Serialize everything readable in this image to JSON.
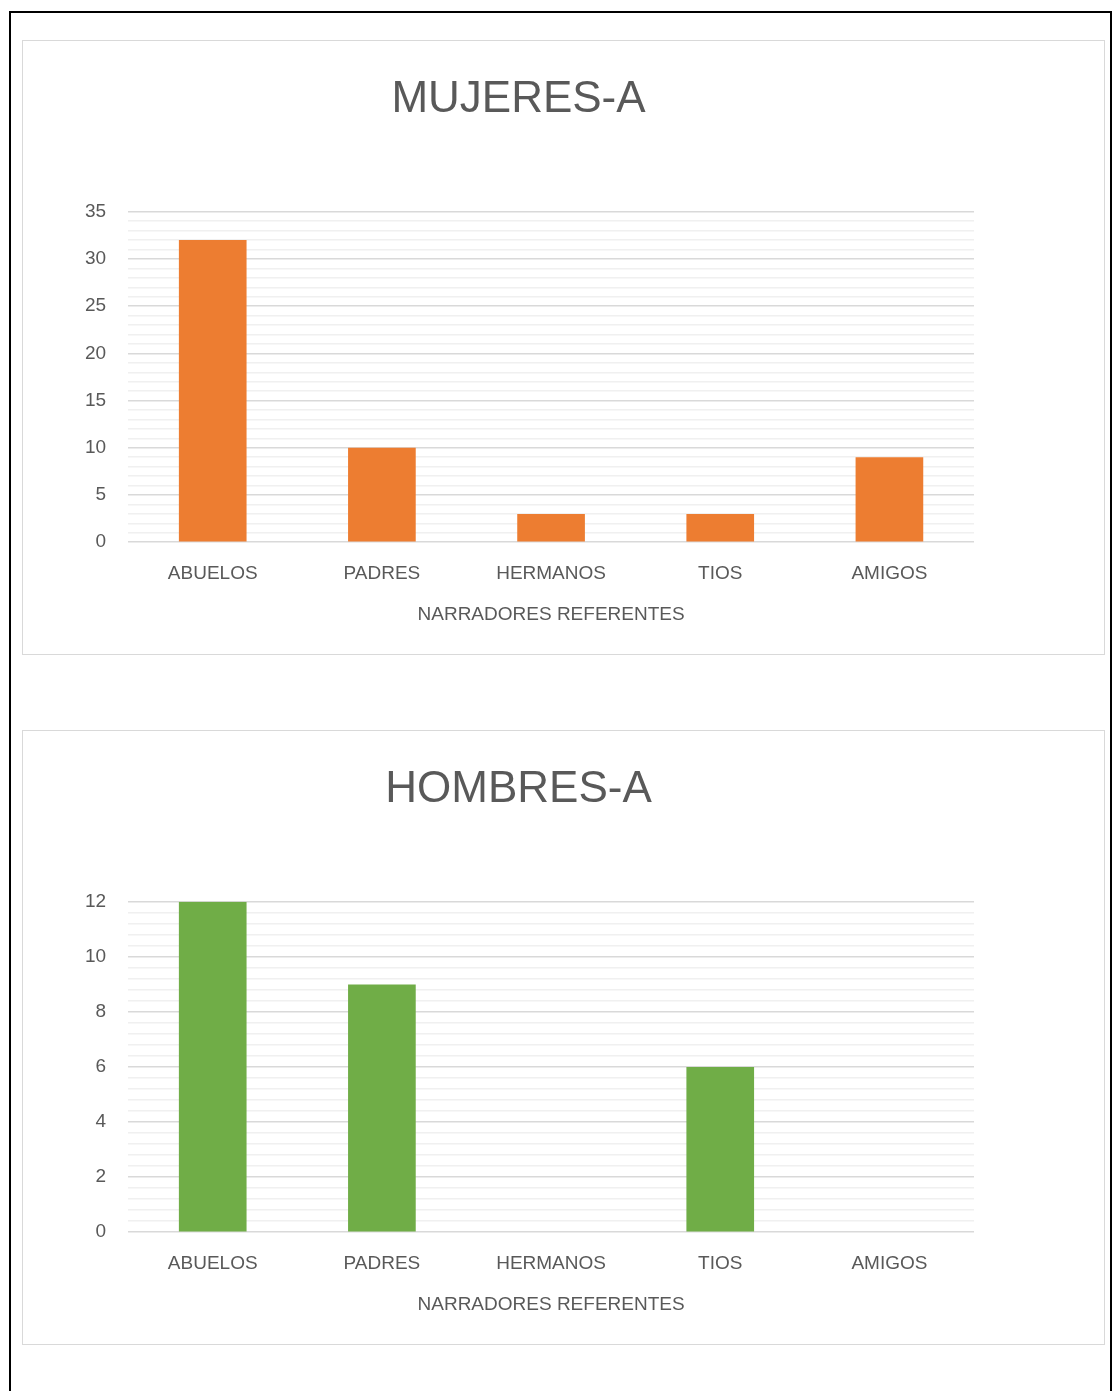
{
  "chart_data": [
    {
      "type": "bar",
      "title": "MUJERES-A",
      "xlabel": "NARRADORES REFERENTES",
      "categories": [
        "ABUELOS",
        "PADRES",
        "HERMANOS",
        "TIOS",
        "AMIGOS"
      ],
      "values": [
        32,
        10,
        3,
        3,
        9
      ],
      "color": "#ed7d31",
      "ylim": [
        0,
        35
      ],
      "yticks": [
        0,
        {
          "value": 1,
          "label": null
        },
        {
          "value": 2,
          "label": null
        },
        {
          "value": 3,
          "label": null
        },
        {
          "value": 4,
          "label": null
        },
        5,
        {
          "value": 6,
          "label": null
        },
        {
          "value": 7,
          "label": null
        },
        {
          "value": 8,
          "label": null
        },
        {
          "value": 9,
          "label": null
        },
        10,
        {
          "value": 11,
          "label": null
        },
        {
          "value": 12,
          "label": null
        },
        {
          "value": 13,
          "label": null
        },
        {
          "value": 14,
          "label": null
        },
        15,
        {
          "value": 16,
          "label": null
        },
        {
          "value": 17,
          "label": null
        },
        {
          "value": 18,
          "label": null
        },
        {
          "value": 19,
          "label": null
        },
        20,
        {
          "value": 21,
          "label": null
        },
        {
          "value": 22,
          "label": null
        },
        {
          "value": 23,
          "label": null
        },
        {
          "value": 24,
          "label": null
        },
        25,
        {
          "value": 26,
          "label": null
        },
        {
          "value": 27,
          "label": null
        },
        {
          "value": 28,
          "label": null
        },
        {
          "value": 29,
          "label": null
        },
        30,
        {
          "value": 31,
          "label": null
        },
        {
          "value": 32,
          "label": null
        },
        {
          "value": 33,
          "label": null
        },
        {
          "value": 34,
          "label": null
        },
        35
      ],
      "grid": "y"
    },
    {
      "type": "bar",
      "title": "HOMBRES-A",
      "xlabel": "NARRADORES REFERENTES",
      "categories": [
        "ABUELOS",
        "PADRES",
        "HERMANOS",
        "TIOS",
        "AMIGOS"
      ],
      "values": [
        12,
        9,
        0,
        6,
        0
      ],
      "color": "#70ad47",
      "ylim": [
        0,
        12
      ],
      "yticks": [
        0,
        {
          "value": 0.4,
          "label": null
        },
        {
          "value": 0.8,
          "label": null
        },
        {
          "value": 1.2,
          "label": null
        },
        {
          "value": 1.6,
          "label": null
        },
        2,
        {
          "value": 2.4,
          "label": null
        },
        {
          "value": 2.8,
          "label": null
        },
        {
          "value": 3.2,
          "label": null
        },
        {
          "value": 3.6,
          "label": null
        },
        4,
        {
          "value": 4.4,
          "label": null
        },
        {
          "value": 4.8,
          "label": null
        },
        {
          "value": 5.2,
          "label": null
        },
        {
          "value": 5.6,
          "label": null
        },
        6,
        {
          "value": 6.4,
          "label": null
        },
        {
          "value": 6.8,
          "label": null
        },
        {
          "value": 7.2,
          "label": null
        },
        {
          "value": 7.6,
          "label": null
        },
        8,
        {
          "value": 8.4,
          "label": null
        },
        {
          "value": 8.8,
          "label": null
        },
        {
          "value": 9.2,
          "label": null
        },
        {
          "value": 9.6,
          "label": null
        },
        10,
        {
          "value": 10.4,
          "label": null
        },
        {
          "value": 10.8,
          "label": null
        },
        {
          "value": 11.2,
          "label": null
        },
        {
          "value": 11.6,
          "label": null
        },
        12
      ],
      "grid": "y"
    }
  ]
}
